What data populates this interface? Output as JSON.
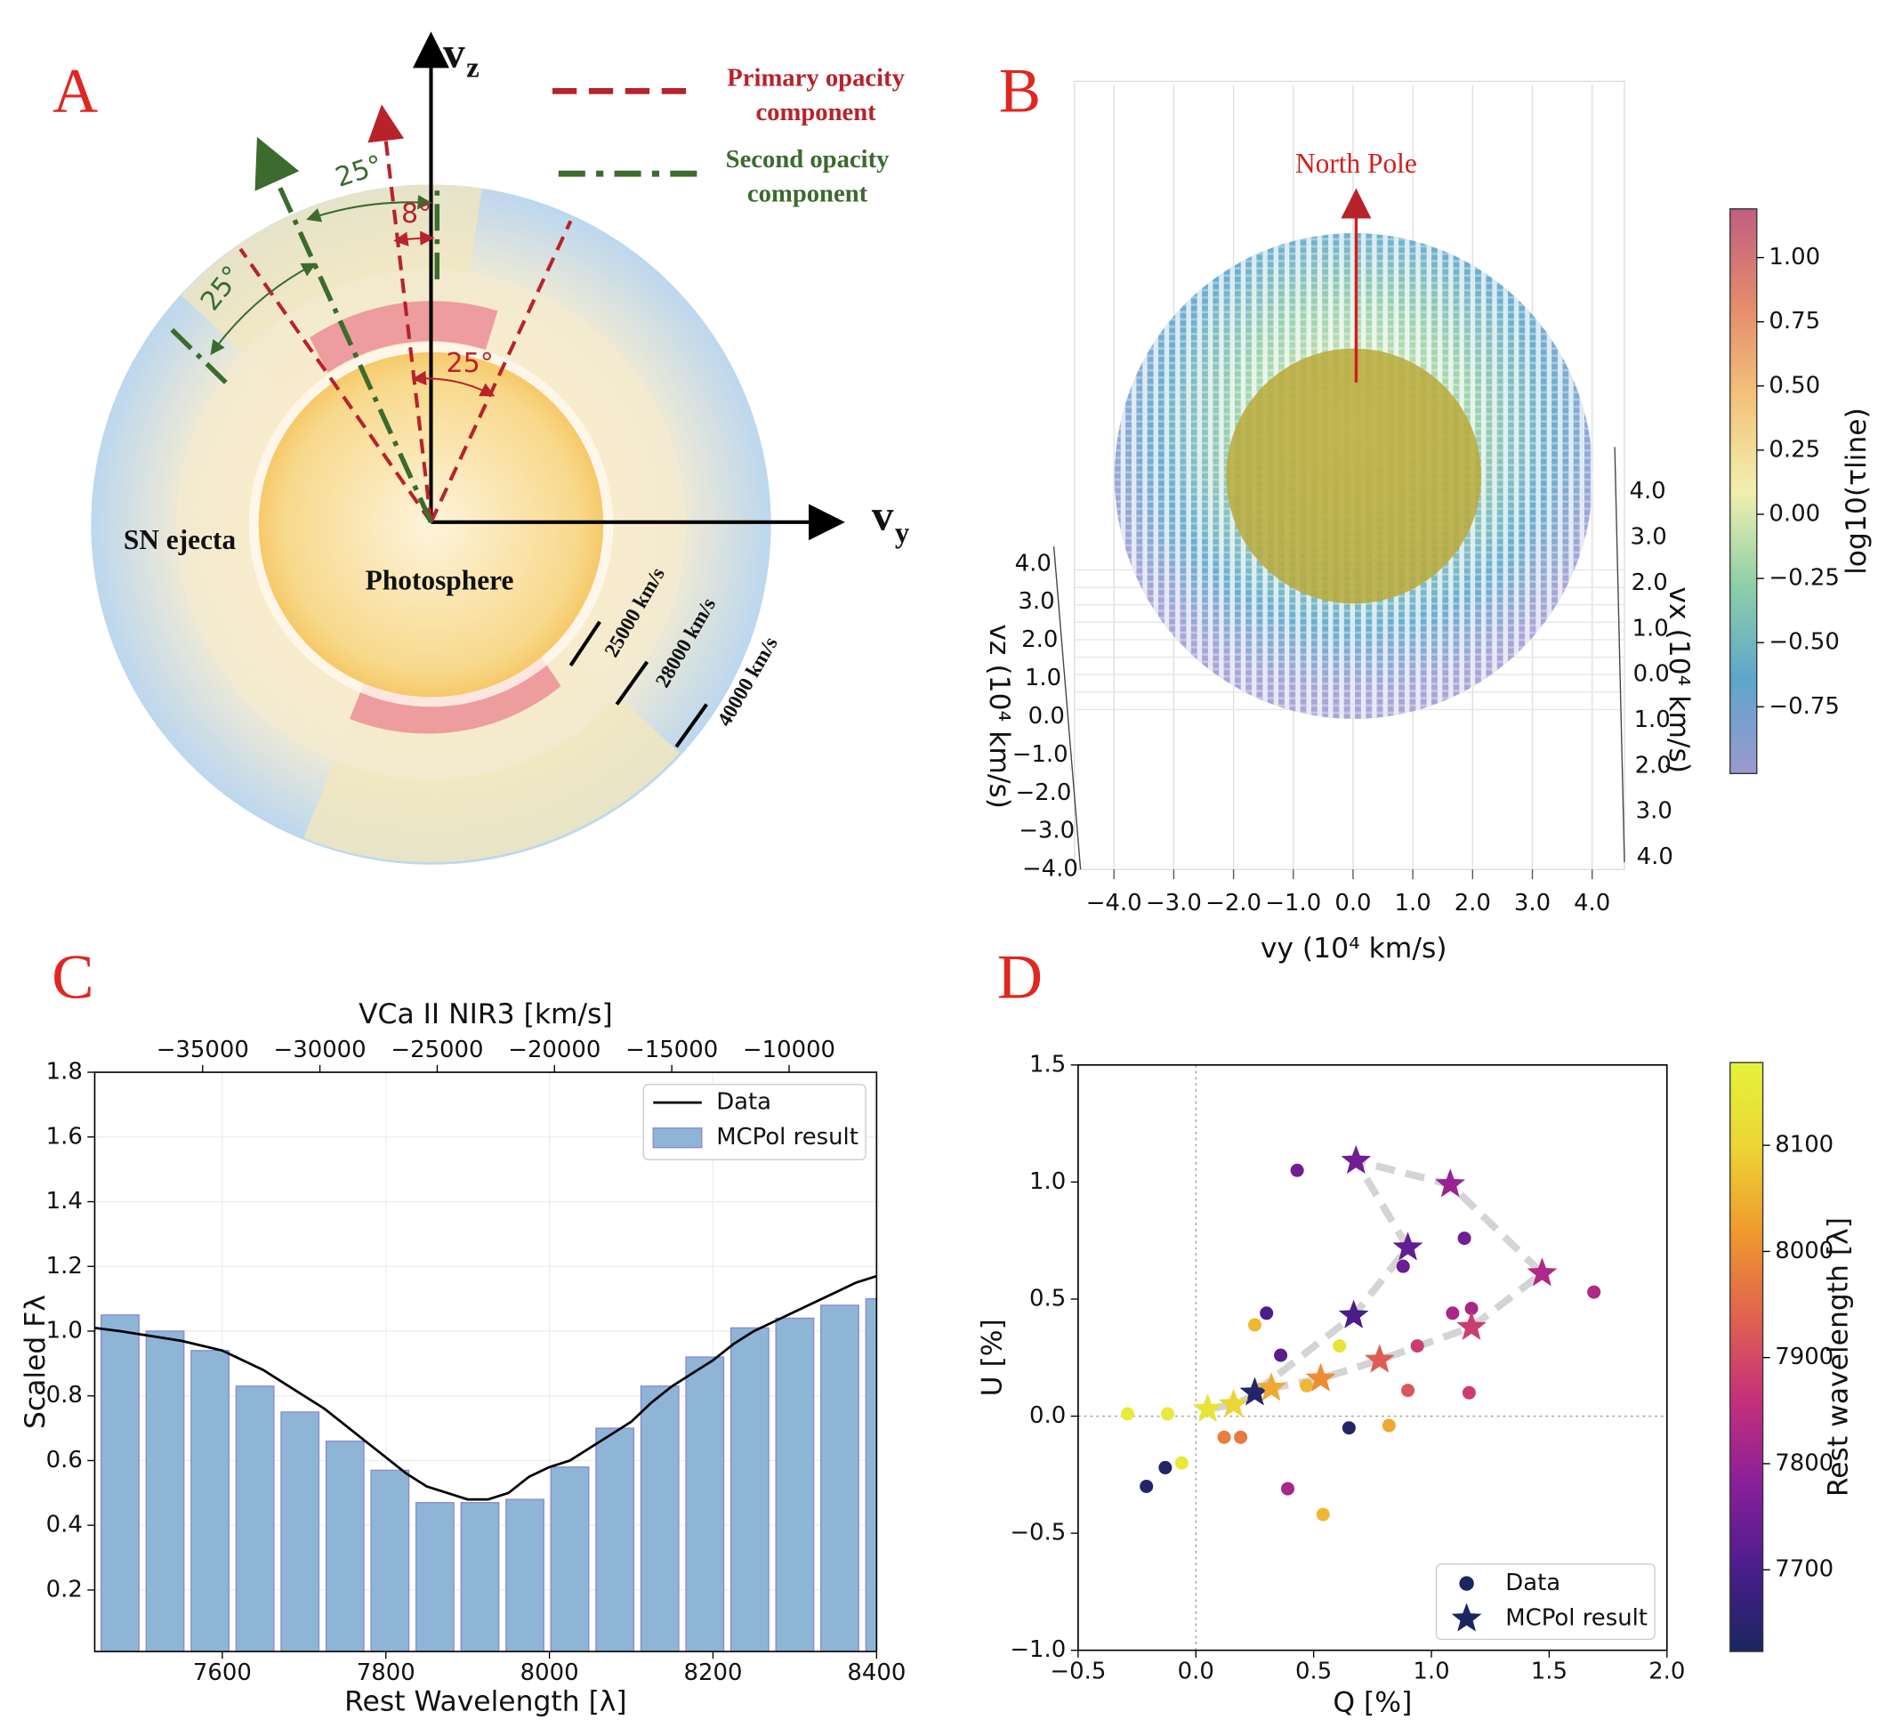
{
  "diagram": {
    "panel_label": "A",
    "axes": {
      "z": {
        "symbol": "v",
        "sub": "z"
      },
      "y": {
        "symbol": "v",
        "sub": "y"
      }
    },
    "legend": [
      {
        "lines": [
          "Primary opacity",
          "component"
        ],
        "color": "#b8222b"
      },
      {
        "lines": [
          "Second opacity",
          "component"
        ],
        "color": "#3b6b2e"
      }
    ],
    "angle_labels": [
      "25°",
      "25°",
      "8°",
      "25°"
    ],
    "regions": [
      "SN ejecta",
      "Photosphere"
    ],
    "velocities": [
      "25000 km/s",
      "28000 km/s",
      "40000 km/s"
    ]
  },
  "chart_data": [
    {
      "type": "scatter3d",
      "panel_label": "B",
      "annotation": "North Pole",
      "xlabel": "vy (10⁴ km/s)",
      "ylabel": "vz (10⁴ km/s)",
      "zlabel": "vx (10⁴ km/s)",
      "xlim": [
        -4.6,
        4.5
      ],
      "xticks": [
        {
          "value": -4,
          "label": "−4.0"
        },
        {
          "value": -3,
          "label": "−3.0"
        },
        {
          "value": -2,
          "label": "−2.0"
        },
        {
          "value": -1,
          "label": "−1.0"
        },
        {
          "value": 0,
          "label": "0.0"
        },
        {
          "value": 1,
          "label": "1.0"
        },
        {
          "value": 2,
          "label": "2.0"
        },
        {
          "value": 3,
          "label": "3.0"
        },
        {
          "value": 4,
          "label": "4.0"
        }
      ],
      "ylim": [
        -4.0,
        4.3
      ],
      "yticks": [
        {
          "value": 4,
          "label": "4.0"
        },
        {
          "value": 3,
          "label": "3.0"
        },
        {
          "value": 2,
          "label": "2.0"
        },
        {
          "value": 1,
          "label": "1.0"
        },
        {
          "value": 0,
          "label": "0.0"
        },
        {
          "value": -1,
          "label": "−1.0"
        },
        {
          "value": -2,
          "label": "−2.0"
        },
        {
          "value": -3,
          "label": "−3.0"
        },
        {
          "value": -4,
          "label": "−4.0"
        }
      ],
      "zticklabels": [
        "4.0",
        "3.0",
        "2.0",
        "1.0",
        "0.0",
        "1.0",
        "2.0",
        "3.0",
        "4.0"
      ],
      "colorbar": {
        "label": "log10(τline)",
        "lim": [
          -1.01,
          1.19
        ],
        "ticks": [
          {
            "value": 1,
            "label": "1.00"
          },
          0.75,
          {
            "value": 0.5,
            "label": "0.50"
          },
          0.25,
          {
            "value": 0,
            "label": "0.00"
          },
          {
            "value": -0.25,
            "label": "−0.25"
          },
          {
            "value": -0.5,
            "label": "−0.50"
          },
          {
            "value": -0.75,
            "label": "−0.75"
          }
        ],
        "colormap": [
          "#9c98cf",
          "#5ea6cb",
          "#8ecfa8",
          "#f2efae",
          "#f4c27b",
          "#e48a6d",
          "#bf5f80"
        ]
      }
    },
    {
      "type": "bar_line",
      "panel_label": "C",
      "xlabel": "Rest Wavelength [λ]",
      "ylabel": "Scaled Fλ",
      "x2label": "VCa II NIR3 [km/s]",
      "xlim": [
        7444,
        8400
      ],
      "xticks": [
        7600,
        7800,
        8000,
        8200,
        8400
      ],
      "ylim": [
        0.01,
        1.8
      ],
      "yticks": [
        0.2,
        0.4,
        0.6,
        0.8,
        {
          "value": 1,
          "label": "1.0"
        },
        1.2,
        1.4,
        1.6,
        1.8
      ],
      "x2lim": [
        -39600,
        -6270
      ],
      "x2ticks": [
        {
          "value": -35000,
          "label": "−35000"
        },
        {
          "value": -30000,
          "label": "−30000"
        },
        {
          "value": -25000,
          "label": "−25000"
        },
        {
          "value": -20000,
          "label": "−20000"
        },
        {
          "value": -15000,
          "label": "−15000"
        },
        {
          "value": -10000,
          "label": "−10000"
        }
      ],
      "grid": true,
      "legend": "upper right",
      "series": [
        {
          "name": "Data",
          "type": "line",
          "color": "#000000",
          "x": [
            7444,
            7475,
            7500,
            7550,
            7600,
            7625,
            7650,
            7675,
            7700,
            7725,
            7750,
            7775,
            7800,
            7825,
            7850,
            7875,
            7900,
            7925,
            7950,
            7975,
            8000,
            8025,
            8050,
            8075,
            8100,
            8125,
            8150,
            8175,
            8200,
            8225,
            8250,
            8275,
            8300,
            8325,
            8350,
            8375,
            8400
          ],
          "values": [
            1.01,
            1.0,
            0.99,
            0.97,
            0.94,
            0.91,
            0.88,
            0.84,
            0.8,
            0.76,
            0.71,
            0.66,
            0.61,
            0.56,
            0.52,
            0.5,
            0.48,
            0.48,
            0.5,
            0.55,
            0.58,
            0.6,
            0.64,
            0.68,
            0.72,
            0.78,
            0.83,
            0.87,
            0.91,
            0.96,
            1.0,
            1.03,
            1.06,
            1.09,
            1.12,
            1.15,
            1.17
          ]
        },
        {
          "name": "MCPol result",
          "type": "bar",
          "color": "#8fb5d6",
          "edgecolor": "#8a8ad0",
          "x": [
            7475,
            7530,
            7585,
            7640,
            7695,
            7750,
            7805,
            7860,
            7915,
            7970,
            8025,
            8080,
            8135,
            8190,
            8245,
            8300,
            8355,
            8410
          ],
          "values": [
            1.05,
            1.0,
            0.94,
            0.83,
            0.75,
            0.66,
            0.57,
            0.47,
            0.47,
            0.48,
            0.58,
            0.7,
            0.83,
            0.92,
            1.01,
            1.04,
            1.08,
            1.1
          ]
        }
      ]
    },
    {
      "type": "scatter",
      "panel_label": "D",
      "xlabel": "Q [%]",
      "ylabel": "U [%]",
      "xlim": [
        -0.5,
        2.0
      ],
      "ylim": [
        -1.0,
        1.5
      ],
      "xticks": [
        {
          "value": -0.5,
          "label": "−0.5"
        },
        {
          "value": 0,
          "label": "0.0"
        },
        0.5,
        {
          "value": 1,
          "label": "1.0"
        },
        1.5,
        {
          "value": 2,
          "label": "2.0"
        }
      ],
      "yticks": [
        {
          "value": -1,
          "label": "−1.0"
        },
        {
          "value": -0.5,
          "label": "−0.5"
        },
        {
          "value": 0,
          "label": "0.0"
        },
        0.5,
        {
          "value": 1,
          "label": "1.0"
        },
        1.5
      ],
      "legend": "lower right",
      "colorbar": {
        "label": "Rest wavelength [λ]",
        "lim": [
          7623,
          8178
        ],
        "ticks": [
          7700,
          7800,
          7900,
          8000,
          8100
        ],
        "colormap": [
          "#1a2660",
          "#4b1d8c",
          "#8a1f9a",
          "#c6307a",
          "#e0644e",
          "#f09a2e",
          "#ecd534",
          "#e5f23a"
        ]
      },
      "series": [
        {
          "name": "Data",
          "marker": "circle",
          "x": [
            0.43,
            1.14,
            0.88,
            0.3,
            0.25,
            0.36,
            0.61,
            1.09,
            1.17,
            1.69,
            0.94,
            0.47,
            0.9,
            1.16,
            0.65,
            0.82,
            0.12,
            0.19,
            -0.29,
            -0.12,
            -0.21,
            -0.13,
            -0.06,
            0.39,
            0.54
          ],
          "values": [
            1.05,
            0.76,
            0.64,
            0.44,
            0.39,
            0.26,
            0.3,
            0.44,
            0.46,
            0.53,
            0.3,
            0.13,
            0.11,
            0.1,
            -0.05,
            -0.04,
            -0.09,
            -0.09,
            0.01,
            0.01,
            -0.3,
            -0.22,
            -0.2,
            -0.31,
            -0.42
          ],
          "c": [
            7750,
            7750,
            7740,
            7700,
            8060,
            7720,
            8140,
            7820,
            7820,
            7830,
            7880,
            8060,
            7920,
            7880,
            7640,
            8040,
            7980,
            7970,
            8160,
            8160,
            7640,
            7640,
            8150,
            7820,
            8060
          ]
        },
        {
          "name": "MCPol result",
          "marker": "star",
          "connect": true,
          "x": [
            0.25,
            0.67,
            0.9,
            0.68,
            1.08,
            1.47,
            1.17,
            0.78,
            0.53,
            0.32,
            0.16,
            0.05
          ],
          "values": [
            0.1,
            0.43,
            0.72,
            1.09,
            0.99,
            0.61,
            0.38,
            0.24,
            0.16,
            0.12,
            0.05,
            0.03
          ],
          "c": [
            7640,
            7700,
            7730,
            7750,
            7800,
            7830,
            7880,
            7930,
            8000,
            8040,
            8100,
            8140
          ]
        }
      ]
    }
  ]
}
